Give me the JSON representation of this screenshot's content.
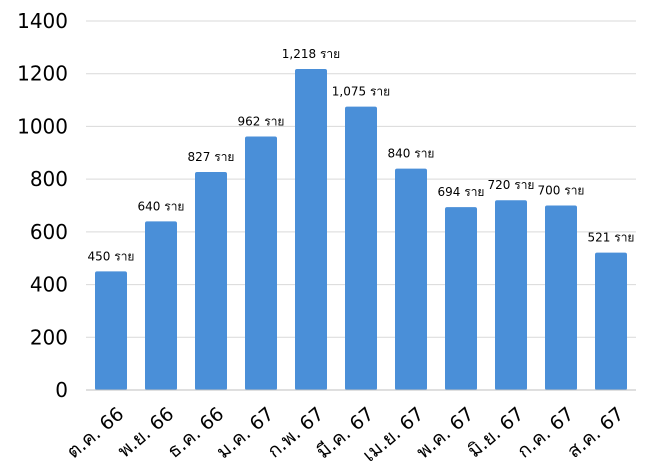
{
  "chart_data": {
    "type": "bar",
    "title": "",
    "xlabel": "",
    "ylabel": "",
    "categories": [
      "ต.ค. 66",
      "พ.ย. 66",
      "ธ.ค. 66",
      "ม.ค. 67",
      "ก.พ. 67",
      "มี.ค. 67",
      "เม.ย. 67",
      "พ.ค. 67",
      "มิ.ย. 67",
      "ก.ค. 67",
      "ส.ค. 67"
    ],
    "values": [
      450,
      640,
      827,
      962,
      1218,
      1075,
      840,
      694,
      720,
      700,
      521
    ],
    "data_labels": [
      "450 ราย",
      "640 ราย",
      "827 ราย",
      "962 ราย",
      "1,218 ราย",
      "1,075 ราย",
      "840 ราย",
      "694 ราย",
      "720 ราย",
      "700 ราย",
      "521 ราย"
    ],
    "ylim": [
      0,
      1400
    ],
    "yticks": [
      "0",
      "200",
      "400",
      "600",
      "800",
      "1000",
      "1200",
      "1400"
    ],
    "grid": true,
    "legend": "none",
    "bar_color": "#4a8fd8"
  }
}
